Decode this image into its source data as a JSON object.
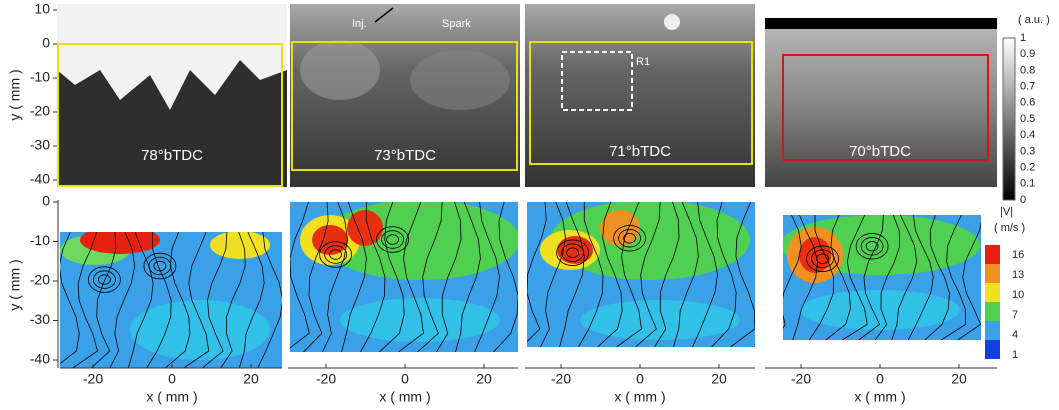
{
  "top_row": {
    "y_axis_label": "y ( mm )",
    "y_ticks": [
      10,
      0,
      -10,
      -20,
      -30,
      -40
    ],
    "panels": [
      {
        "label": "78°bTDC"
      },
      {
        "label": "73°bTDC",
        "annotations": [
          "Inj.",
          "Spark"
        ]
      },
      {
        "label": "71°bTDC",
        "annotations": [
          "R1"
        ]
      },
      {
        "label": "70°bTDC"
      }
    ],
    "colorbar": {
      "title": "( a.u. )",
      "ticks": [
        1,
        0.9,
        0.8,
        0.7,
        0.6,
        0.5,
        0.4,
        0.3,
        0.2,
        0.1,
        0
      ]
    }
  },
  "bottom_row": {
    "y_axis_label": "y ( mm )",
    "y_ticks": [
      0,
      -10,
      -20,
      -30,
      -40
    ],
    "x_axis_label": "x ( mm )",
    "x_ticks": [
      -20,
      0,
      20
    ],
    "colorbar": {
      "title": "|V|",
      "unit": "( m/s )",
      "ticks": [
        16,
        13,
        10,
        7,
        4,
        1
      ]
    }
  }
}
